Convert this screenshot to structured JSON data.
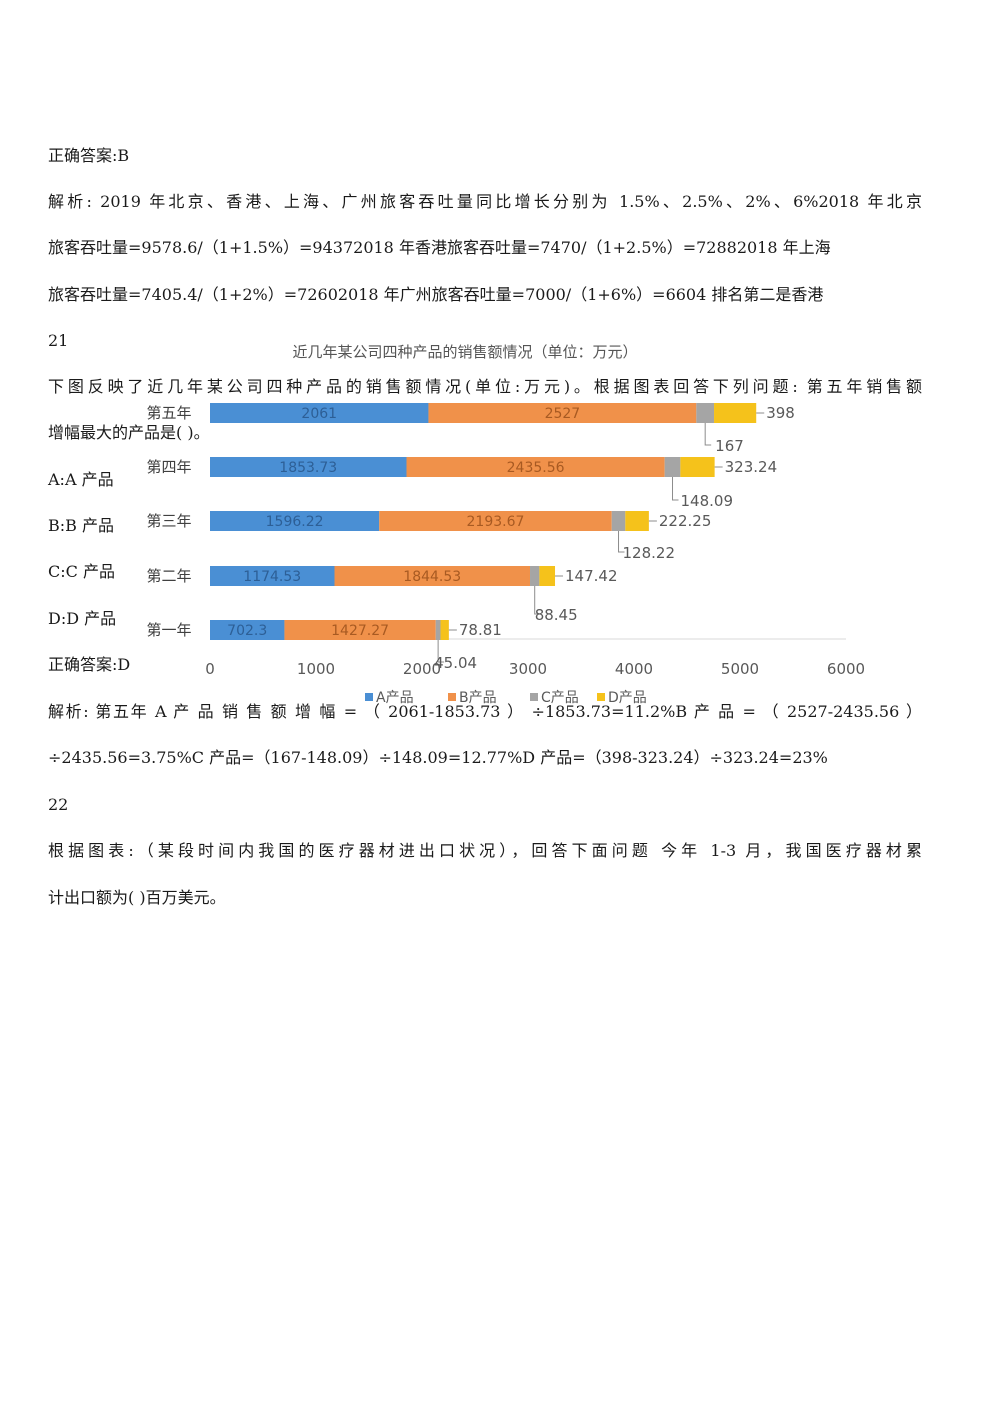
{
  "doc": {
    "lines": [
      "正确答案:B",
      "解析: 2019 年北京、香港、上海、广州旅客吞吐量同比增长分别为 1.5%、2.5%、2%、6%2018 年北京",
      "旅客吞吐量=9578.6/（1+1.5%）=94372018 年香港旅客吞吐量=7470/（1+2.5%）=72882018 年上海",
      "旅客吞吐量=7405.4/（1+2%）=72602018 年广州旅客吞吐量=7000/（1+6%）=6604 排名第二是香港",
      "21",
      "下图反映了近几年某公司四种产品的销售额情况(单位:万元)。根据图表回答下列问题: 第五年销售额",
      "增幅最大的产品是( )。",
      "A:A 产品",
      "B:B 产品",
      "C:C 产品",
      "D:D 产品",
      "正确答案:D",
      "解析: 第五年 A 产 品 销 售 额 增 幅 = （ 2061-1853.73 ） ÷1853.73=11.2%B 产 品 = （ 2527-2435.56 ）",
      "÷2435.56=3.75%C 产品=（167-148.09）÷148.09=12.77%D 产品=（398-323.24）÷323.24=23%",
      "22",
      "根据图表:（某段时间内我国的医疗器材进出口状况），回答下面问题 今年 1-3 月，我国医疗器材累",
      "计出口额为( )百万美元。"
    ]
  },
  "chart_data": {
    "type": "bar",
    "orientation": "horizontal",
    "stacked": true,
    "title": "近几年某公司四种产品的销售额情况（单位：万元）",
    "categories": [
      "第五年",
      "第四年",
      "第三年",
      "第二年",
      "第一年"
    ],
    "series": [
      {
        "name": "A产品",
        "color": "#4a8fd4",
        "values": [
          2061,
          1853.73,
          1596.22,
          1174.53,
          702.3
        ]
      },
      {
        "name": "B产品",
        "color": "#f0914a",
        "values": [
          2527,
          2435.56,
          2193.67,
          1844.53,
          1427.27
        ]
      },
      {
        "name": "C产品",
        "color": "#a5a5a5",
        "values": [
          167,
          148.09,
          128.22,
          88.45,
          45.04
        ]
      },
      {
        "name": "D产品",
        "color": "#f5c21b",
        "values": [
          398,
          323.24,
          222.25,
          147.42,
          78.81
        ]
      }
    ],
    "value_labels": [
      [
        "2061",
        "2527",
        "167",
        "398"
      ],
      [
        "1853.73",
        "2435.56",
        "148.09",
        "323.24"
      ],
      [
        "1596.22",
        "2193.67",
        "128.22",
        "222.25"
      ],
      [
        "1174.53",
        "1844.53",
        "88.45",
        "147.42"
      ],
      [
        "702.3",
        "1427.27",
        "45.04",
        "78.81"
      ]
    ],
    "x_ticks": [
      "0",
      "1000",
      "2000",
      "3000",
      "4000",
      "5000",
      "6000"
    ],
    "xlim": [
      0,
      6000
    ],
    "grid": false,
    "legend_position": "bottom"
  }
}
